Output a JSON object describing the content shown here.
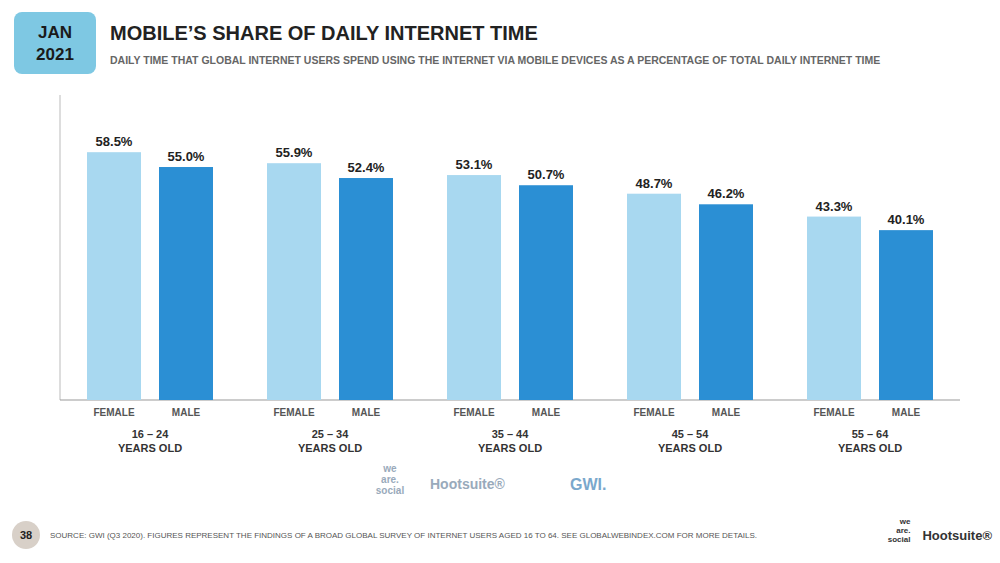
{
  "chart_data": {
    "type": "bar",
    "title": "MOBILE’S SHARE OF DAILY INTERNET TIME",
    "subtitle": "DAILY TIME THAT GLOBAL INTERNET USERS SPEND USING THE INTERNET VIA MOBILE DEVICES AS A PERCENTAGE OF TOTAL DAILY INTERNET TIME",
    "categories": [
      "16 – 24\nYEARS OLD",
      "25 – 34\nYEARS OLD",
      "35 – 44\nYEARS OLD",
      "45 – 54\nYEARS OLD",
      "55 – 64\nYEARS OLD"
    ],
    "series": [
      {
        "name": "FEMALE",
        "color": "#a8d8f0",
        "values": [
          58.5,
          55.9,
          53.1,
          48.7,
          43.3
        ],
        "value_labels": [
          "58.5%",
          "55.9%",
          "53.1%",
          "48.7%",
          "43.3%"
        ]
      },
      {
        "name": "MALE",
        "color": "#2b8fd4",
        "values": [
          55.0,
          52.4,
          50.7,
          46.2,
          40.1
        ],
        "value_labels": [
          "55.0%",
          "52.4%",
          "50.7%",
          "46.2%",
          "40.1%"
        ]
      }
    ],
    "ylim": [
      0,
      72
    ],
    "data_labels": true,
    "tick_labels": false,
    "grid": false,
    "annotations": [
      "JAN\n2021",
      "we\nare.\nsocial",
      "Hootsuite®",
      "GWI.",
      "38",
      "SOURCE: GWI (Q3 2020). FIGURES REPRESENT THE FINDINGS OF A BROAD GLOBAL SURVEY OF INTERNET USERS AGED 16 TO 64. SEE GLOBALWEBINDEX.COM FOR MORE DETAILS.",
      "we\nare.\nsocial",
      "Hootsuite®"
    ]
  }
}
